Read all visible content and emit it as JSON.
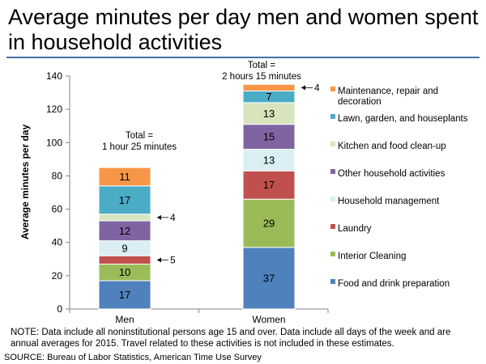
{
  "title": "Average minutes per day men and women spent in household activities",
  "note": "NOTE: Data include all noninstitutional persons age 15 and over. Data include all days of the week and are annual averages for 2015. Travel related to these activities is not included in these estimates.",
  "source": "SOURCE: Bureau of Labor Statistics, American Time Use Survey",
  "chart_data": {
    "type": "bar",
    "stacked": true,
    "title": "Average minutes per day men and women spent in household activities",
    "xlabel": "",
    "ylabel": "Average minutes per day",
    "ylim": [
      0,
      140
    ],
    "yticks": [
      0,
      20,
      40,
      60,
      80,
      100,
      120,
      140
    ],
    "categories": [
      "Men",
      "Women"
    ],
    "totals": [
      [
        "Total =",
        "1 hour  25 minutes"
      ],
      [
        "Total =",
        "2 hours 15 minutes"
      ]
    ],
    "series": [
      {
        "name": "Food and drink preparation",
        "color": "#4f81bd",
        "values": [
          17,
          37
        ],
        "labels": [
          "17",
          "37"
        ]
      },
      {
        "name": "Interior Cleaning",
        "color": "#9bbb59",
        "values": [
          10,
          29
        ],
        "labels": [
          "10",
          "29"
        ]
      },
      {
        "name": "Laundry",
        "color": "#c0504d",
        "values": [
          5,
          17
        ],
        "labels": [
          "",
          "17"
        ]
      },
      {
        "name": "Household management",
        "color": "#daeef3",
        "values": [
          9,
          13
        ],
        "labels": [
          "9",
          "13"
        ]
      },
      {
        "name": "Other household activities",
        "color": "#8064a2",
        "values": [
          12,
          15
        ],
        "labels": [
          "12",
          "15"
        ]
      },
      {
        "name": "Kitchen and food clean-up",
        "color": "#d7e4bc",
        "values": [
          4,
          13
        ],
        "labels": [
          "",
          "13"
        ]
      },
      {
        "name": "Lawn, garden, and houseplants",
        "color": "#4bacc6",
        "values": [
          17,
          7
        ],
        "labels": [
          "17",
          "7"
        ]
      },
      {
        "name": "Maintenance, repair and decoration",
        "color": "#f79646",
        "values": [
          11,
          4
        ],
        "labels": [
          "11",
          ""
        ]
      }
    ],
    "annotations": [
      {
        "text": "4",
        "category": "Men",
        "series": "Kitchen and food clean-up"
      },
      {
        "text": "5",
        "category": "Men",
        "series": "Laundry"
      },
      {
        "text": "4",
        "category": "Women",
        "series": "Maintenance, repair and decoration"
      }
    ],
    "legend_position": "right",
    "legend_order": [
      "Maintenance, repair and decoration",
      "Lawn, garden, and houseplants",
      "Kitchen and food clean-up",
      "Other household activities",
      "Household management",
      "Laundry",
      "Interior Cleaning",
      "Food and drink preparation"
    ],
    "legend_lines": [
      [
        "Maintenance, repair and",
        "decoration"
      ],
      [
        "Lawn, garden, and houseplants"
      ],
      [
        "Kitchen and food clean-up"
      ],
      [
        "Other household activities"
      ],
      [
        "Household management"
      ],
      [
        "Laundry"
      ],
      [
        "Interior Cleaning"
      ],
      [
        "Food and drink preparation"
      ]
    ]
  }
}
